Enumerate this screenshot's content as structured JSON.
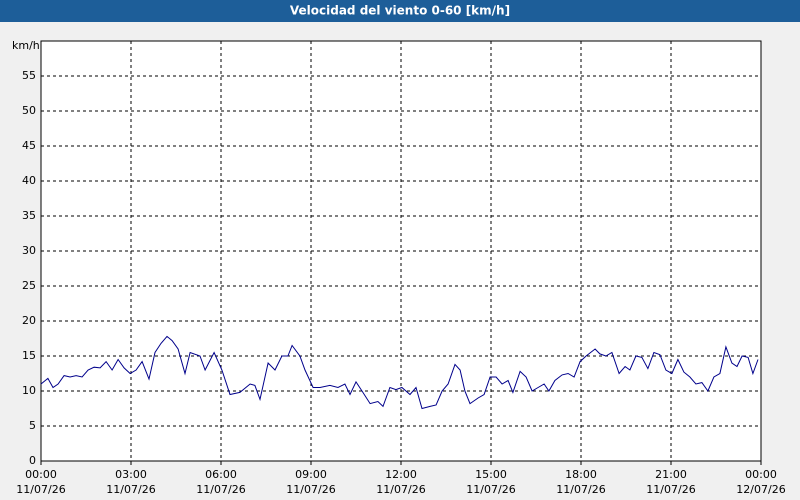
{
  "chart_data": {
    "type": "line",
    "title": "Velocidad del viento 0-60 [km/h]",
    "y_label": "km/h",
    "x": [
      0,
      0.23,
      0.4,
      0.57,
      0.77,
      0.97,
      1.17,
      1.37,
      1.57,
      1.77,
      1.97,
      2.17,
      2.37,
      2.57,
      2.77,
      2.97,
      3.17,
      3.37,
      3.6,
      3.8,
      4.0,
      4.2,
      4.37,
      4.57,
      4.8,
      4.97,
      5.3,
      5.47,
      5.77,
      6.03,
      6.3,
      6.63,
      6.97,
      7.13,
      7.3,
      7.57,
      7.8,
      8.03,
      8.23,
      8.37,
      8.63,
      8.8,
      9.07,
      9.3,
      9.63,
      9.9,
      10.13,
      10.3,
      10.5,
      10.7,
      10.97,
      11.23,
      11.4,
      11.63,
      11.83,
      12.03,
      12.3,
      12.5,
      12.7,
      12.97,
      13.17,
      13.37,
      13.57,
      13.8,
      13.97,
      14.13,
      14.3,
      14.57,
      14.77,
      14.97,
      15.17,
      15.37,
      15.57,
      15.73,
      15.97,
      16.17,
      16.37,
      16.57,
      16.77,
      16.93,
      17.13,
      17.37,
      17.57,
      17.77,
      17.97,
      18.17,
      18.47,
      18.63,
      18.83,
      19.03,
      19.27,
      19.47,
      19.63,
      19.83,
      20.03,
      20.23,
      20.43,
      20.63,
      20.83,
      21.03,
      21.23,
      21.43,
      21.63,
      21.83,
      22.03,
      22.23,
      22.43,
      22.63,
      22.83,
      23.03,
      23.2,
      23.37,
      23.57,
      23.73,
      23.9
    ],
    "series": [
      {
        "color": "#00008b",
        "values": [
          11,
          11.8,
          10.5,
          11,
          12.2,
          12,
          12.2,
          12,
          13,
          13.4,
          13.3,
          14.2,
          13,
          14.5,
          13.3,
          12.5,
          13,
          14.2,
          11.7,
          15.5,
          16.8,
          17.8,
          17.2,
          16,
          12.5,
          15.5,
          15,
          13,
          15.5,
          13,
          9.5,
          9.8,
          11,
          10.8,
          8.8,
          14,
          13,
          15,
          15,
          16.5,
          15,
          13,
          10.5,
          10.5,
          10.8,
          10.5,
          11,
          9.5,
          11.3,
          10,
          8.2,
          8.5,
          7.8,
          10.5,
          10.2,
          10.5,
          9.5,
          10.5,
          7.5,
          7.8,
          8,
          10,
          11,
          13.8,
          13,
          10,
          8.2,
          9,
          9.5,
          12,
          12,
          11,
          11.5,
          9.8,
          12.8,
          12,
          10,
          10.5,
          11,
          10,
          11.5,
          12.3,
          12.5,
          12,
          14.2,
          15,
          16,
          15.3,
          15,
          15.5,
          12.5,
          13.5,
          13,
          15,
          14.8,
          13.2,
          15.5,
          15.2,
          13,
          12.5,
          14.5,
          12.7,
          12,
          11,
          11.2,
          10,
          12,
          12.5,
          16.3,
          14,
          13.5,
          15,
          14.8,
          12.5,
          14.5
        ]
      }
    ],
    "xlim": [
      0,
      24
    ],
    "xticks": [
      {
        "value": 0,
        "label": "00:00"
      },
      {
        "value": 3,
        "label": "03:00"
      },
      {
        "value": 6,
        "label": "06:00"
      },
      {
        "value": 9,
        "label": "09:00"
      },
      {
        "value": 12,
        "label": "12:00"
      },
      {
        "value": 15,
        "label": "15:00"
      },
      {
        "value": 18,
        "label": "18:00"
      },
      {
        "value": 21,
        "label": "21:00"
      },
      {
        "value": 24,
        "label": "00:00"
      }
    ],
    "xtick_dates": [
      "11/07/26",
      "11/07/26",
      "11/07/26",
      "11/07/26",
      "11/07/26",
      "11/07/26",
      "11/07/26",
      "11/07/26",
      "12/07/26"
    ],
    "ylim": [
      0,
      60
    ],
    "yticks": [
      0,
      5,
      10,
      15,
      20,
      25,
      30,
      35,
      40,
      45,
      50,
      55
    ],
    "grid": true
  }
}
